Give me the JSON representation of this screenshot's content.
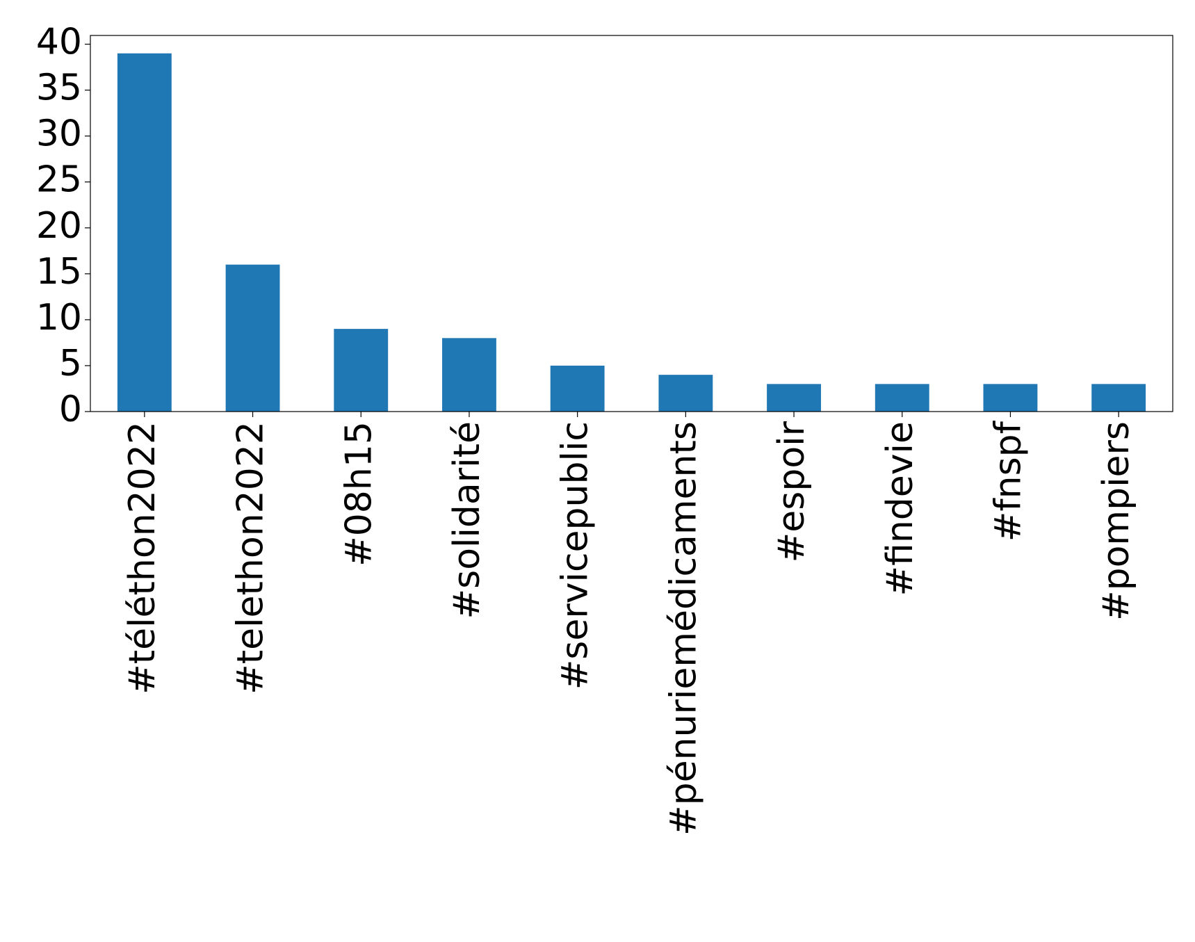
{
  "chart_data": {
    "type": "bar",
    "categories": [
      "#téléthon2022",
      "#telethon2022",
      "#08h15",
      "#solidarité",
      "#servicepublic",
      "#pénuriemédicaments",
      "#espoir",
      "#findevie",
      "#fnspf",
      "#pompiers"
    ],
    "values": [
      39,
      16,
      9,
      8,
      5,
      4,
      3,
      3,
      3,
      3
    ],
    "color": "#1f77b4",
    "ylim": [
      0,
      40.95
    ],
    "yticks": [
      0,
      5,
      10,
      15,
      20,
      25,
      30,
      35,
      40
    ],
    "grid": false
  }
}
